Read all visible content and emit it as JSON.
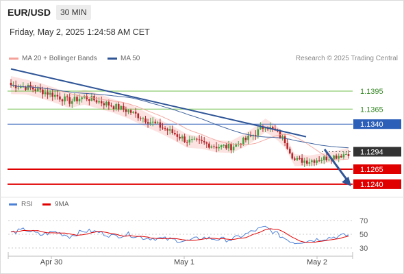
{
  "header": {
    "pair": "EUR/USD",
    "timeframe": "30 MIN",
    "timestamp": "Friday, May 2, 2025 1:24:58 AM CET",
    "credit": "Research © 2025 Trading Central"
  },
  "legend": {
    "bollinger": "MA 20 + Bollinger Bands",
    "ma50": "MA 50",
    "rsi": "RSI",
    "rsi_ma": "9MA"
  },
  "colors": {
    "bollinger": "#f4a19a",
    "band_fill": "#fbdcda",
    "ma50": "#2f5597",
    "candle_up": "#3fa13f",
    "candle_down": "#b5242a",
    "support": "#e00000",
    "resistance": "#2c5fb8",
    "pivot": "#333333",
    "green_level": "#6fbf4a",
    "trend": "#2f5597",
    "rsi": "#4c7fd6",
    "rsi_ma": "#e00000"
  },
  "chart_data": [
    {
      "type": "candlestick",
      "x_labels": [
        "Apr 30",
        "May 1",
        "May 2"
      ],
      "price_range": [
        1.1225,
        1.1435
      ],
      "levels": [
        {
          "value": "1.1395",
          "kind": "resistance-minor"
        },
        {
          "value": "1.1365",
          "kind": "resistance-minor"
        },
        {
          "value": "1.1340",
          "kind": "resistance"
        },
        {
          "value": "1.1294",
          "kind": "pivot"
        },
        {
          "value": "1.1265",
          "kind": "support"
        },
        {
          "value": "1.1240",
          "kind": "support"
        }
      ],
      "trendline": {
        "start": 1.1432,
        "end": 1.1319
      },
      "forecast_arrow": {
        "from": 1.1298,
        "to": 1.124
      },
      "anchors": [
        [
          0,
          1.1405,
          12
        ],
        [
          6,
          1.1402,
          10
        ],
        [
          12,
          1.1396,
          10
        ],
        [
          18,
          1.1388,
          10
        ],
        [
          24,
          1.1378,
          9
        ],
        [
          30,
          1.1385,
          10
        ],
        [
          36,
          1.1378,
          10
        ],
        [
          42,
          1.137,
          9
        ],
        [
          48,
          1.1362,
          10
        ],
        [
          54,
          1.135,
          10
        ],
        [
          60,
          1.1338,
          9
        ],
        [
          66,
          1.1326,
          9
        ],
        [
          72,
          1.1312,
          9
        ],
        [
          78,
          1.1309,
          8
        ],
        [
          84,
          1.1303,
          8
        ],
        [
          90,
          1.1302,
          8
        ],
        [
          96,
          1.1314,
          9
        ],
        [
          100,
          1.1325,
          9
        ],
        [
          104,
          1.1338,
          9
        ],
        [
          108,
          1.1328,
          9
        ],
        [
          112,
          1.1312,
          9
        ],
        [
          116,
          1.128,
          8
        ],
        [
          122,
          1.1279,
          7
        ],
        [
          128,
          1.1283,
          7
        ],
        [
          134,
          1.1288,
          7
        ],
        [
          138,
          1.1292,
          7
        ]
      ]
    },
    {
      "type": "line",
      "name": "RSI",
      "y_ticks": [
        "70",
        "50",
        "30"
      ],
      "y_range": [
        20,
        80
      ],
      "rsi_anchors": [
        [
          0,
          52
        ],
        [
          6,
          57
        ],
        [
          12,
          49
        ],
        [
          18,
          54
        ],
        [
          24,
          47
        ],
        [
          30,
          55
        ],
        [
          36,
          53
        ],
        [
          42,
          47
        ],
        [
          48,
          50
        ],
        [
          54,
          45
        ],
        [
          60,
          44
        ],
        [
          66,
          42
        ],
        [
          72,
          40
        ],
        [
          78,
          45
        ],
        [
          84,
          43
        ],
        [
          90,
          42
        ],
        [
          96,
          50
        ],
        [
          100,
          56
        ],
        [
          104,
          60
        ],
        [
          108,
          52
        ],
        [
          112,
          44
        ],
        [
          116,
          38
        ],
        [
          122,
          41
        ],
        [
          128,
          44
        ],
        [
          134,
          47
        ],
        [
          138,
          49
        ]
      ]
    }
  ]
}
